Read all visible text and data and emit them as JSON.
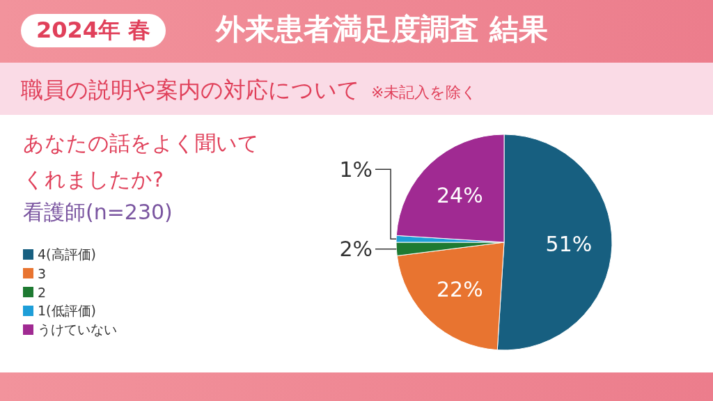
{
  "chart_data": {
    "type": "pie",
    "title": "外来患者満足度調査 結果",
    "subtitle": "職員の説明や案内の対応について",
    "annotations": [
      "2024年 春",
      "※未記入を除く",
      "あなたの話をよく聞いてくれましたか?",
      "看護師(n=230)"
    ],
    "categories": [
      "4(高評価)",
      "3",
      "2",
      "1(低評価)",
      "うけていない"
    ],
    "values": [
      51,
      22,
      2,
      1,
      24
    ],
    "colors": [
      "#175f80",
      "#e87430",
      "#1e7a32",
      "#1e9ed8",
      "#a02a92"
    ],
    "value_labels": [
      "51%",
      "22%",
      "2%",
      "1%",
      "24%"
    ],
    "legend": "left"
  }
}
